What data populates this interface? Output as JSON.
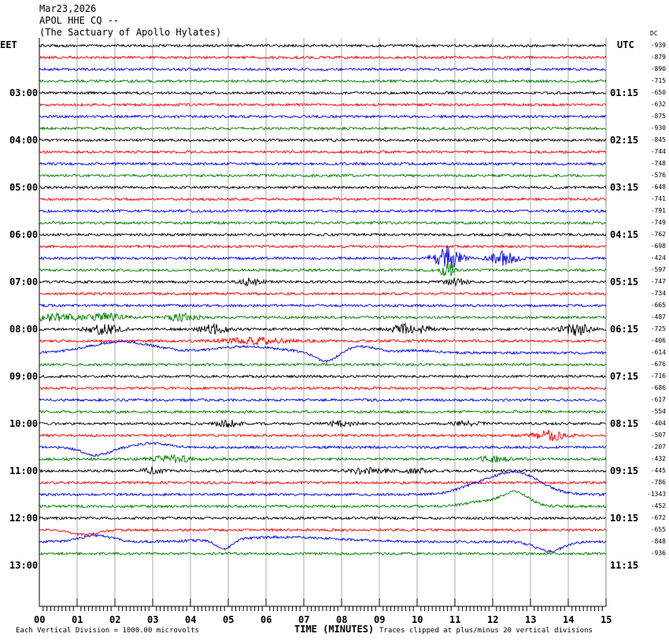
{
  "header": {
    "date": "Mar23,2026",
    "station": "APOL HHE CQ --",
    "site": "(The Sactuary of Apollo Hylates)"
  },
  "left_tz": "EET",
  "right_tz": "UTC",
  "dc_label": "DC",
  "chart_data": {
    "type": "line",
    "title": "",
    "xlabel": "TIME (MINUTES)",
    "x_ticks": [
      "00",
      "01",
      "02",
      "03",
      "04",
      "05",
      "06",
      "07",
      "08",
      "09",
      "10",
      "11",
      "12",
      "13",
      "14",
      "15"
    ],
    "xlim": [
      0,
      15
    ],
    "left_hour_labels": [
      "03:00",
      "04:00",
      "05:00",
      "06:00",
      "07:00",
      "08:00",
      "09:00",
      "10:00",
      "11:00",
      "12:00",
      "13:00"
    ],
    "right_hour_labels": [
      "01:15",
      "02:15",
      "03:15",
      "04:15",
      "05:15",
      "06:15",
      "07:15",
      "08:15",
      "09:15",
      "10:15",
      "11:15"
    ],
    "trace_colors": [
      "#000000",
      "#ff0000",
      "#0000ff",
      "#008000"
    ],
    "dc_offsets": [
      -939,
      -879,
      -890,
      -715,
      -650,
      -632,
      -875,
      -930,
      -845,
      -744,
      -748,
      -576,
      -648,
      -741,
      -791,
      -749,
      -762,
      -698,
      -424,
      -597,
      -747,
      -734,
      -665,
      -487,
      -725,
      -406,
      -614,
      -676,
      -716,
      -686,
      -617,
      -554,
      -404,
      -507,
      -207,
      -432,
      -445,
      -786,
      -1343,
      -452,
      -672,
      -655,
      -848,
      -936
    ],
    "grid": true
  },
  "footer": {
    "scale": "Each Vertical Division = 1000.00 microvolts",
    "clip": "Traces clipped at plus/minus 20 vertical divisions"
  }
}
